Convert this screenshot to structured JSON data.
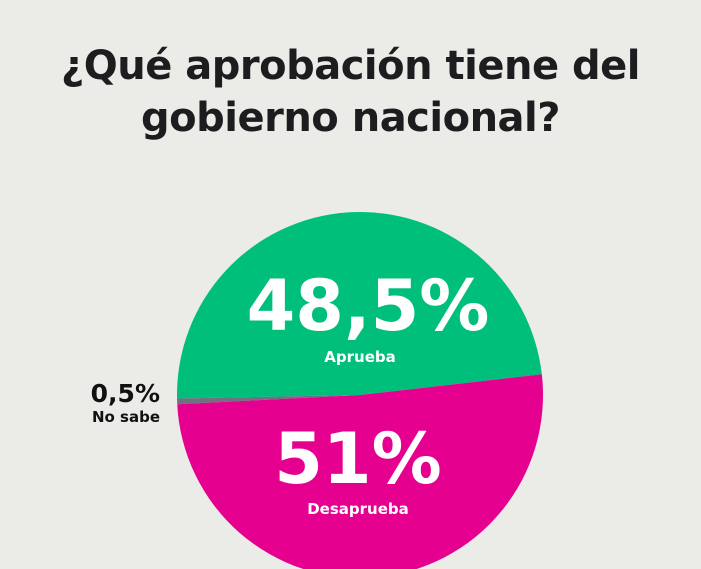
{
  "chart_data": {
    "type": "pie",
    "title": "¿Qué aprobación tiene del gobierno nacional?",
    "slices": [
      {
        "label": "Aprueba",
        "value": 48.5,
        "value_label": "48,5%",
        "color": "#00bf7b"
      },
      {
        "label": "No sabe",
        "value": 0.5,
        "value_label": "0,5%",
        "color": "#6e7180"
      },
      {
        "label": "Desaprueba",
        "value": 51,
        "value_label": "51%",
        "color": "#e6008f"
      }
    ]
  }
}
